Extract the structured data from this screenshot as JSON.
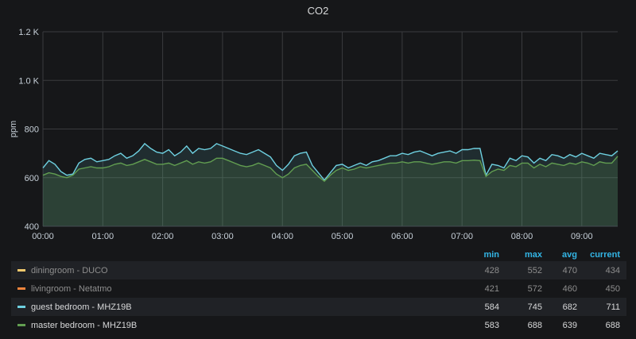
{
  "panel": {
    "title": "CO2"
  },
  "chart_data": {
    "type": "line",
    "ylabel": "ppm",
    "ylim": [
      400,
      1200
    ],
    "y_ticks": [
      "400",
      "600",
      "800",
      "1.0 K",
      "1.2 K"
    ],
    "x_ticks": [
      "00:00",
      "01:00",
      "02:00",
      "03:00",
      "04:00",
      "05:00",
      "06:00",
      "07:00",
      "08:00",
      "09:00"
    ],
    "x_range_hours": [
      0,
      9.6
    ],
    "grid": true,
    "legend_placement": "bottom-table",
    "series": [
      {
        "name": "guest bedroom - MHZ19B",
        "color": "#6ed0e0",
        "fill": true,
        "x": [
          0,
          0.1,
          0.2,
          0.3,
          0.4,
          0.5,
          0.6,
          0.7,
          0.8,
          0.9,
          1.0,
          1.1,
          1.2,
          1.3,
          1.4,
          1.5,
          1.6,
          1.7,
          1.8,
          1.9,
          2.0,
          2.1,
          2.2,
          2.3,
          2.4,
          2.5,
          2.6,
          2.7,
          2.8,
          2.9,
          3.0,
          3.1,
          3.2,
          3.3,
          3.4,
          3.5,
          3.6,
          3.7,
          3.8,
          3.9,
          4.0,
          4.1,
          4.2,
          4.3,
          4.4,
          4.5,
          4.6,
          4.7,
          4.8,
          4.9,
          5.0,
          5.1,
          5.2,
          5.3,
          5.4,
          5.5,
          5.6,
          5.7,
          5.8,
          5.9,
          6.0,
          6.1,
          6.2,
          6.3,
          6.4,
          6.5,
          6.6,
          6.7,
          6.8,
          6.9,
          7.0,
          7.1,
          7.2,
          7.3,
          7.4,
          7.5,
          7.6,
          7.7,
          7.8,
          7.9,
          8.0,
          8.1,
          8.2,
          8.3,
          8.4,
          8.5,
          8.6,
          8.7,
          8.8,
          8.9,
          9.0,
          9.1,
          9.2,
          9.3,
          9.4,
          9.5,
          9.6
        ],
        "values": [
          640,
          670,
          655,
          625,
          610,
          615,
          660,
          675,
          680,
          665,
          670,
          675,
          690,
          700,
          680,
          690,
          710,
          740,
          720,
          705,
          700,
          715,
          690,
          705,
          730,
          700,
          720,
          715,
          720,
          740,
          730,
          720,
          710,
          700,
          695,
          705,
          715,
          700,
          685,
          650,
          630,
          655,
          690,
          700,
          705,
          650,
          620,
          590,
          620,
          650,
          655,
          640,
          650,
          660,
          650,
          665,
          670,
          680,
          690,
          690,
          700,
          695,
          705,
          710,
          700,
          690,
          700,
          705,
          710,
          700,
          715,
          715,
          720,
          720,
          610,
          655,
          650,
          640,
          680,
          670,
          690,
          685,
          660,
          680,
          670,
          695,
          690,
          680,
          695,
          685,
          700,
          690,
          680,
          700,
          695,
          690,
          710
        ],
        "min": "584",
        "max": "745",
        "avg": "682",
        "current": "711"
      },
      {
        "name": "master bedroom - MHZ19B",
        "color": "#629e51",
        "fill": true,
        "x": [
          0,
          0.1,
          0.2,
          0.3,
          0.4,
          0.5,
          0.6,
          0.7,
          0.8,
          0.9,
          1.0,
          1.1,
          1.2,
          1.3,
          1.4,
          1.5,
          1.6,
          1.7,
          1.8,
          1.9,
          2.0,
          2.1,
          2.2,
          2.3,
          2.4,
          2.5,
          2.6,
          2.7,
          2.8,
          2.9,
          3.0,
          3.1,
          3.2,
          3.3,
          3.4,
          3.5,
          3.6,
          3.7,
          3.8,
          3.9,
          4.0,
          4.1,
          4.2,
          4.3,
          4.4,
          4.5,
          4.6,
          4.7,
          4.8,
          4.9,
          5.0,
          5.1,
          5.2,
          5.3,
          5.4,
          5.5,
          5.6,
          5.7,
          5.8,
          5.9,
          6.0,
          6.1,
          6.2,
          6.3,
          6.4,
          6.5,
          6.6,
          6.7,
          6.8,
          6.9,
          7.0,
          7.1,
          7.2,
          7.3,
          7.4,
          7.5,
          7.6,
          7.7,
          7.8,
          7.9,
          8.0,
          8.1,
          8.2,
          8.3,
          8.4,
          8.5,
          8.6,
          8.7,
          8.8,
          8.9,
          9.0,
          9.1,
          9.2,
          9.3,
          9.4,
          9.5,
          9.6
        ],
        "values": [
          610,
          620,
          615,
          605,
          600,
          610,
          635,
          640,
          645,
          640,
          640,
          645,
          655,
          660,
          650,
          655,
          665,
          675,
          665,
          655,
          655,
          660,
          650,
          660,
          670,
          655,
          665,
          660,
          665,
          680,
          680,
          670,
          660,
          650,
          645,
          650,
          660,
          650,
          640,
          615,
          600,
          615,
          640,
          650,
          655,
          630,
          605,
          585,
          610,
          630,
          640,
          630,
          635,
          645,
          640,
          645,
          650,
          655,
          660,
          660,
          665,
          660,
          665,
          665,
          660,
          655,
          660,
          665,
          665,
          660,
          670,
          670,
          672,
          670,
          605,
          625,
          635,
          630,
          650,
          645,
          660,
          660,
          640,
          655,
          645,
          660,
          655,
          650,
          660,
          655,
          665,
          660,
          650,
          665,
          660,
          660,
          688
        ],
        "min": "583",
        "max": "688",
        "avg": "639",
        "current": "688"
      }
    ]
  },
  "legend": {
    "headers": {
      "min": "min",
      "max": "max",
      "avg": "avg",
      "current": "current"
    },
    "rows": [
      {
        "name": "diningroom - DUCO",
        "color": "#f2c96d",
        "min": "428",
        "max": "552",
        "avg": "470",
        "current": "434"
      },
      {
        "name": "livingroom - Netatmo",
        "color": "#ef843c",
        "min": "421",
        "max": "572",
        "avg": "460",
        "current": "450"
      },
      {
        "name": "guest bedroom - MHZ19B",
        "color": "#6ed0e0",
        "min": "584",
        "max": "745",
        "avg": "682",
        "current": "711"
      },
      {
        "name": "master bedroom - MHZ19B",
        "color": "#629e51",
        "min": "583",
        "max": "688",
        "avg": "639",
        "current": "688"
      }
    ]
  }
}
